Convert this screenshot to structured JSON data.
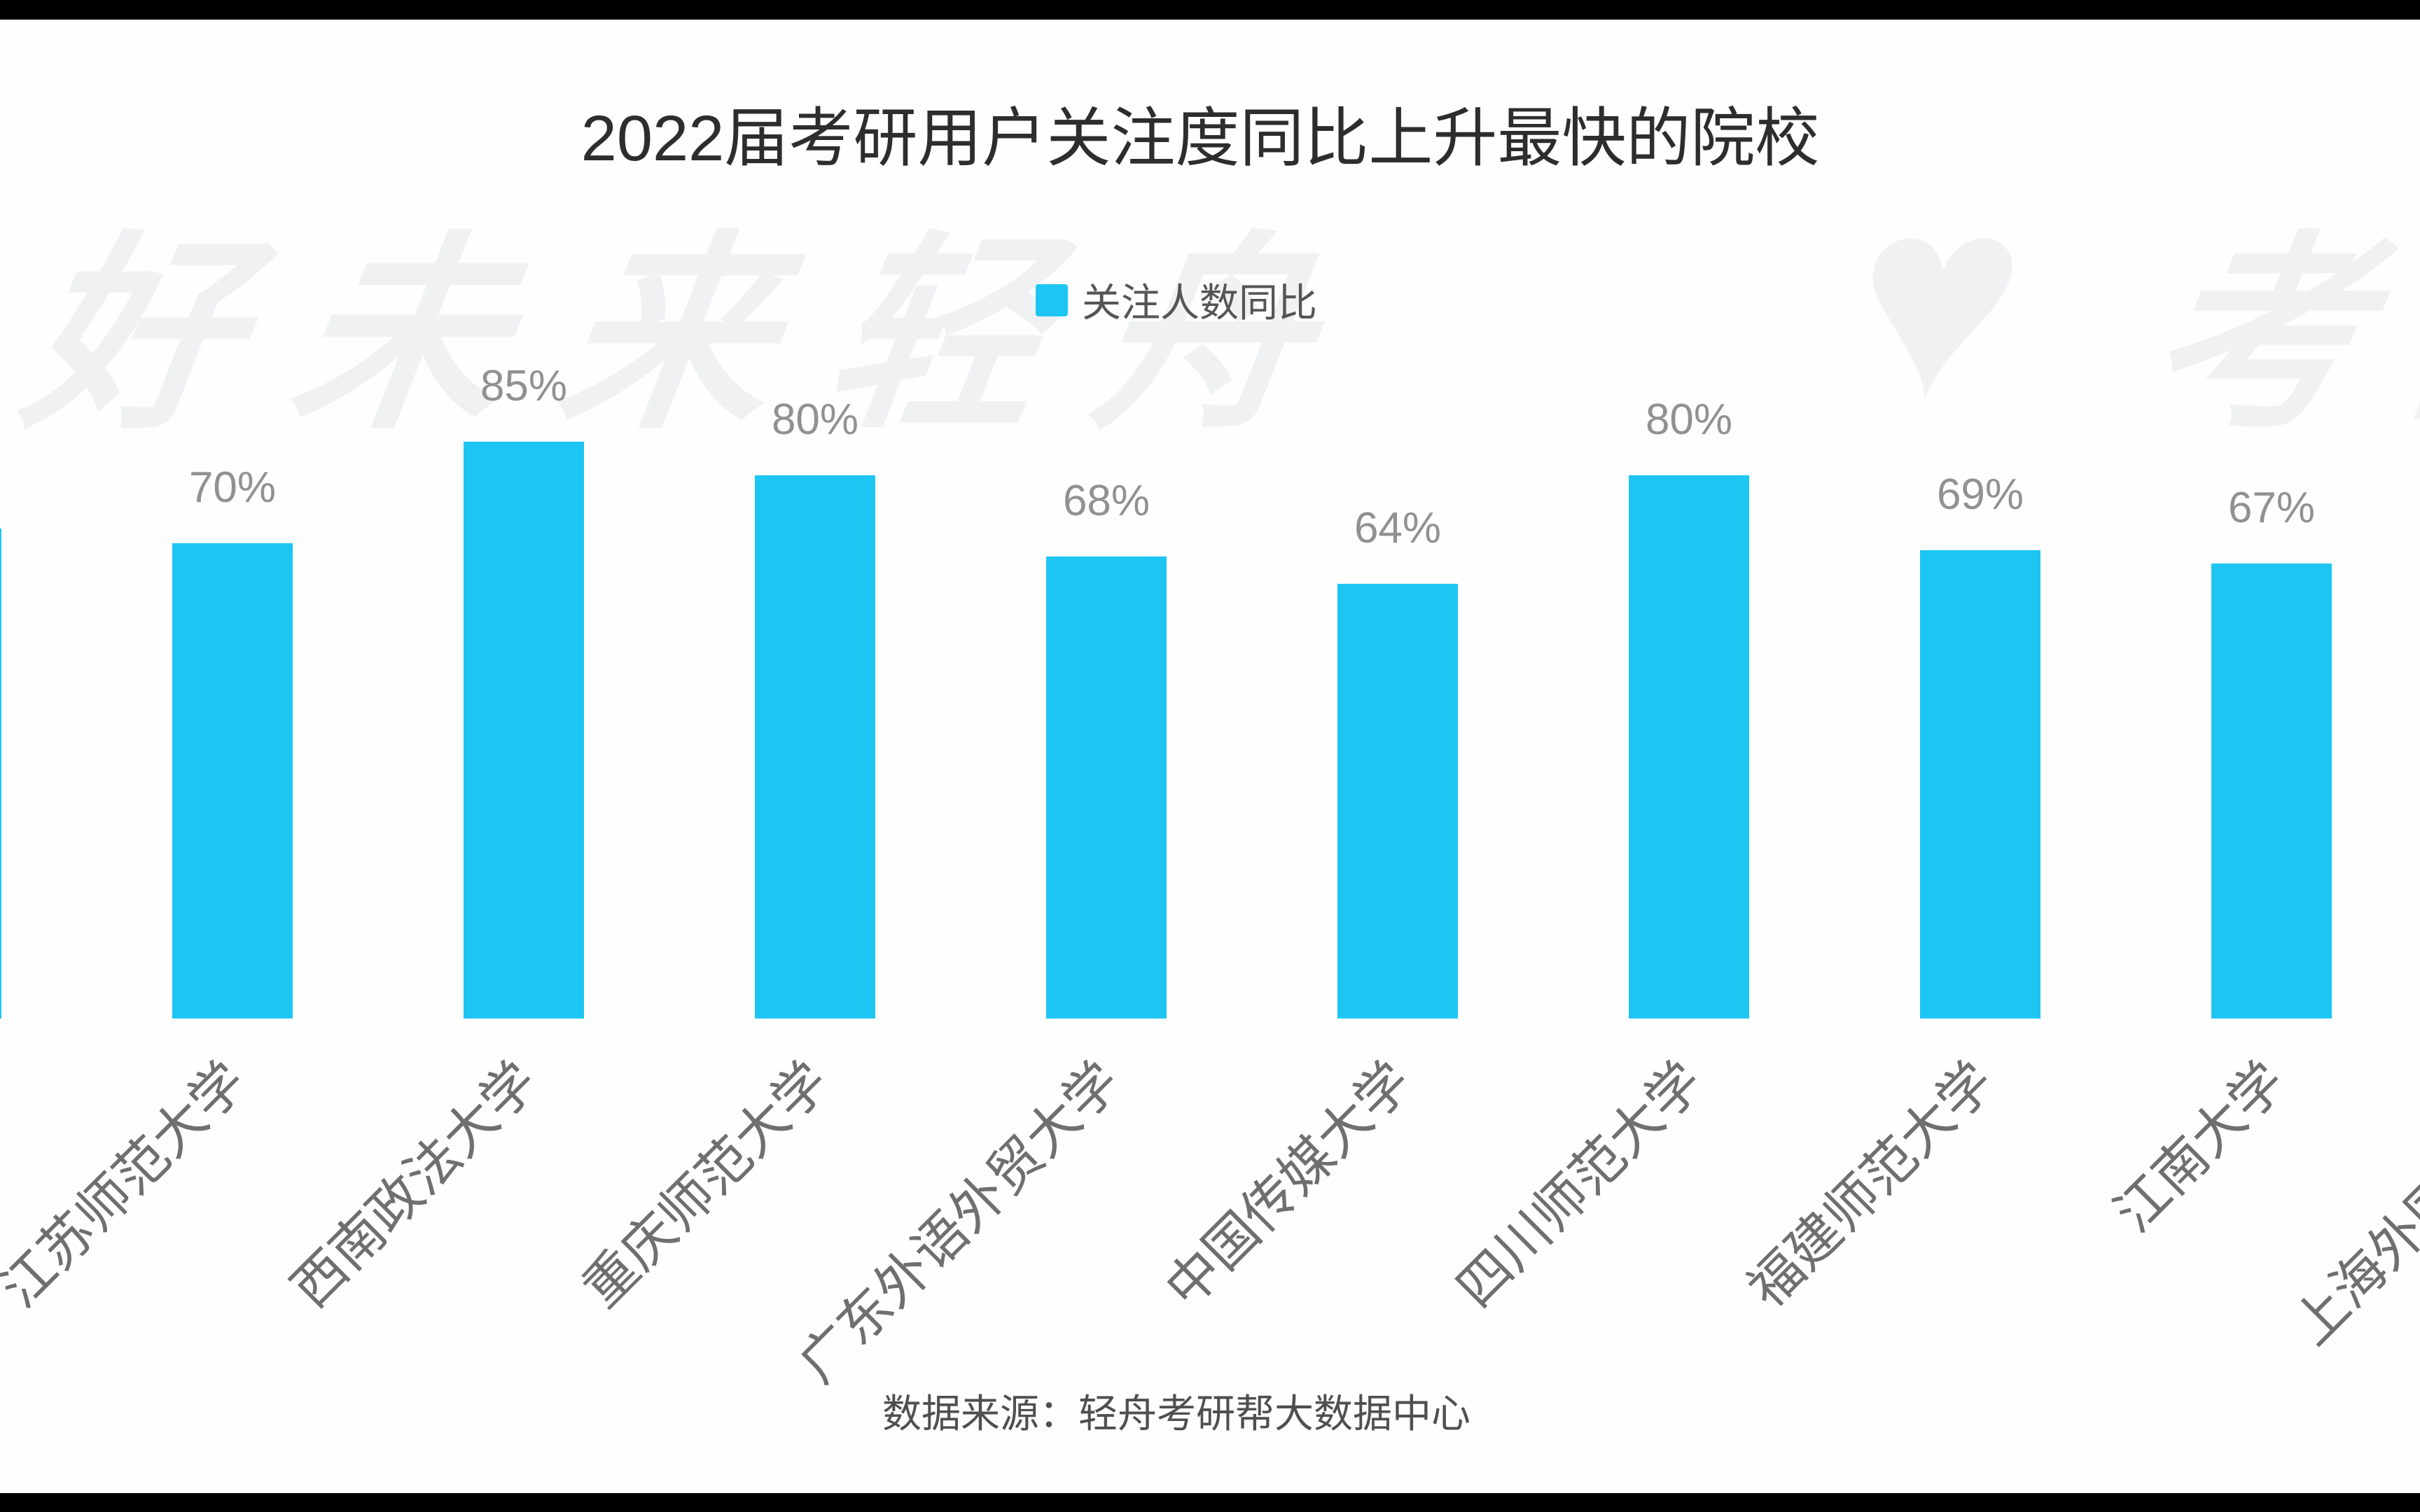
{
  "title": "2022届考研用户关注度同比上升最快的院校",
  "legend": {
    "label": "关注人数同比",
    "swatch_color": "#1dc5f3"
  },
  "source": "数据来源：轻舟考研帮大数据中心",
  "watermark": {
    "text_left": "好未来轻舟",
    "heart": "♥",
    "text_right": "考研"
  },
  "chart_data": {
    "type": "bar",
    "title": "2022届考研用户关注度同比上升最快的院校",
    "legend": [
      "关注人数同比"
    ],
    "categories": [
      "江苏师范大学",
      "西南政法大学",
      "重庆师范大学",
      "广东外语外贸大学",
      "中国传媒大学",
      "四川师范大学",
      "福建师范大学",
      "江南大学"
    ],
    "values": [
      70,
      85,
      80,
      68,
      64,
      80,
      69,
      67
    ],
    "data_labels": [
      "70%",
      "85%",
      "80%",
      "68%",
      "64%",
      "80%",
      "69%",
      "67%"
    ],
    "unit": "%",
    "bar_color": "#1dc5f3",
    "value_label_color": "#919191",
    "axis_label_color": "#6f6f6f",
    "x_label_rotation_deg": -45,
    "grid": false,
    "y_axis_visible": false,
    "legend_position": "top-center",
    "clipped_left_bar": true,
    "clipped_right_category": "上海外国语大学",
    "source": "数据来源：轻舟考研帮大数据中心"
  }
}
